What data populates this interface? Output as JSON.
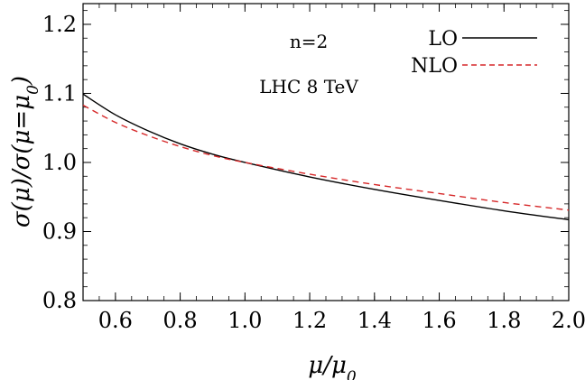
{
  "chart_data": {
    "type": "line",
    "title": "",
    "xlabel": "μ/μ₀",
    "ylabel": "σ(μ)/σ(μ=μ₀)",
    "xlim": [
      0.5,
      2.0
    ],
    "ylim": [
      0.8,
      1.23
    ],
    "xticks": [
      0.6,
      0.8,
      1.0,
      1.2,
      1.4,
      1.6,
      1.8,
      2.0
    ],
    "xtick_labels": [
      "0.6",
      "0.8",
      "1.0",
      "1.2",
      "1.4",
      "1.6",
      "1.8",
      "2.0"
    ],
    "yticks": [
      0.8,
      0.9,
      1.0,
      1.1,
      1.2
    ],
    "ytick_labels": [
      "0.8",
      "0.9",
      "1.0",
      "1.1",
      "1.2"
    ],
    "grid": false,
    "legend_position": "top-right",
    "annotations": [
      "n=2",
      "LHC 8 TeV"
    ],
    "series": [
      {
        "name": "LO",
        "color": "#000000",
        "style": "solid",
        "x": [
          0.5,
          0.6,
          0.7,
          0.8,
          0.9,
          1.0,
          1.2,
          1.4,
          1.6,
          1.8,
          2.0
        ],
        "y": [
          1.099,
          1.069,
          1.046,
          1.027,
          1.012,
          1.0,
          0.979,
          0.961,
          0.945,
          0.93,
          0.917
        ]
      },
      {
        "name": "NLO",
        "color": "#d62728",
        "style": "dashed",
        "x": [
          0.5,
          0.6,
          0.7,
          0.8,
          0.9,
          1.0,
          1.2,
          1.4,
          1.6,
          1.8,
          2.0
        ],
        "y": [
          1.083,
          1.058,
          1.039,
          1.023,
          1.01,
          1.0,
          0.983,
          0.968,
          0.955,
          0.942,
          0.931
        ]
      }
    ]
  }
}
